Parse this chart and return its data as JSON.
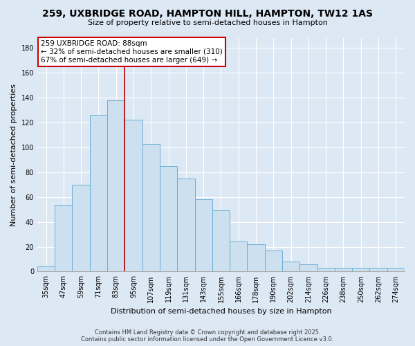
{
  "title": "259, UXBRIDGE ROAD, HAMPTON HILL, HAMPTON, TW12 1AS",
  "subtitle": "Size of property relative to semi-detached houses in Hampton",
  "xlabel": "Distribution of semi-detached houses by size in Hampton",
  "ylabel": "Number of semi-detached properties",
  "bar_labels": [
    "35sqm",
    "47sqm",
    "59sqm",
    "71sqm",
    "83sqm",
    "95sqm",
    "107sqm",
    "119sqm",
    "131sqm",
    "143sqm",
    "155sqm",
    "166sqm",
    "178sqm",
    "190sqm",
    "202sqm",
    "214sqm",
    "226sqm",
    "238sqm",
    "250sqm",
    "262sqm",
    "274sqm"
  ],
  "bar_values": [
    4,
    54,
    70,
    126,
    138,
    122,
    103,
    85,
    75,
    58,
    49,
    24,
    22,
    17,
    8,
    6,
    3,
    3,
    3,
    3,
    3
  ],
  "bar_color": "#cce0f0",
  "bar_edge_color": "#6aafd4",
  "vline_x": 4.5,
  "vline_color": "#bb0000",
  "annotation_title": "259 UXBRIDGE ROAD: 88sqm",
  "annotation_line1": "← 32% of semi-detached houses are smaller (310)",
  "annotation_line2": "67% of semi-detached houses are larger (649) →",
  "annotation_box_facecolor": "#ffffff",
  "annotation_box_edgecolor": "#cc0000",
  "ylim": [
    0,
    188
  ],
  "yticks": [
    0,
    20,
    40,
    60,
    80,
    100,
    120,
    140,
    160,
    180
  ],
  "background_color": "#dde8f5",
  "grid_color": "#ffffff",
  "footer1": "Contains HM Land Registry data © Crown copyright and database right 2025.",
  "footer2": "Contains public sector information licensed under the Open Government Licence v3.0.",
  "title_fontsize": 10,
  "subtitle_fontsize": 8,
  "ylabel_fontsize": 8,
  "xlabel_fontsize": 8,
  "tick_fontsize": 7,
  "ann_fontsize": 7.5,
  "footer_fontsize": 6
}
